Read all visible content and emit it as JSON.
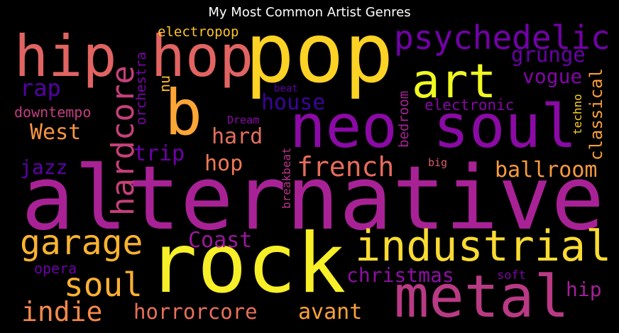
{
  "title": "My Most Common Artist Genres",
  "words": [
    {
      "text": "alternative",
      "color": "#a82296",
      "vertical": false
    },
    {
      "text": "rock",
      "color": "#f7ef28",
      "vertical": false
    },
    {
      "text": "pop",
      "color": "#fcd225",
      "vertical": false
    },
    {
      "text": "neo soul",
      "color": "#8b0aa5",
      "vertical": false
    },
    {
      "text": "metal",
      "color": "#b93a84",
      "vertical": false
    },
    {
      "text": "hip hop",
      "color": "#e16462",
      "vertical": false
    },
    {
      "text": "b",
      "color": "#fca636",
      "vertical": false
    },
    {
      "text": "art",
      "color": "#f0f921",
      "vertical": false
    },
    {
      "text": "industrial",
      "color": "#fadb32",
      "vertical": false
    },
    {
      "text": "psychedelic",
      "color": "#7301a8",
      "vertical": false
    },
    {
      "text": "garage",
      "color": "#fbb32f",
      "vertical": false
    },
    {
      "text": "hardcore",
      "color": "#c6407a",
      "vertical": true
    },
    {
      "text": "soul",
      "color": "#fdb130",
      "vertical": false
    },
    {
      "text": "french",
      "color": "#e66c5c",
      "vertical": false
    },
    {
      "text": "indie",
      "color": "#f4894a",
      "vertical": false
    },
    {
      "text": "horrorcore",
      "color": "#e8705a",
      "vertical": false
    },
    {
      "text": "avant",
      "color": "#fba238",
      "vertical": false
    },
    {
      "text": "ballroom",
      "color": "#f69b3e",
      "vertical": false
    },
    {
      "text": "christmas",
      "color": "#8f0ea4",
      "vertical": false
    },
    {
      "text": "Coast",
      "color": "#9c179e",
      "vertical": false
    },
    {
      "text": "grunge",
      "color": "#6a00a8",
      "vertical": false
    },
    {
      "text": "vogue",
      "color": "#8305a7",
      "vertical": false
    },
    {
      "text": "house",
      "color": "#3b049a",
      "vertical": false
    },
    {
      "text": "rap",
      "color": "#5302a3",
      "vertical": false
    },
    {
      "text": "West",
      "color": "#f89540",
      "vertical": false
    },
    {
      "text": "jazz",
      "color": "#5c01a6",
      "vertical": false
    },
    {
      "text": "trip",
      "color": "#6f00a8",
      "vertical": false
    },
    {
      "text": "hard",
      "color": "#e46f5e",
      "vertical": false
    },
    {
      "text": "hop",
      "color": "#ed7953",
      "vertical": false
    },
    {
      "text": "downtempo",
      "color": "#c33d80",
      "vertical": false
    },
    {
      "text": "electronic",
      "color": "#8606a6",
      "vertical": false
    },
    {
      "text": "classical",
      "color": "#fb9f3a",
      "vertical": true
    },
    {
      "text": "bedroom",
      "color": "#a62098",
      "vertical": true
    },
    {
      "text": "orchestra",
      "color": "#7e03a8",
      "vertical": true
    },
    {
      "text": "hip",
      "color": "#a51f99",
      "vertical": false
    },
    {
      "text": "opera",
      "color": "#6e00a8",
      "vertical": false
    },
    {
      "text": "electropop",
      "color": "#fdc328",
      "vertical": false
    },
    {
      "text": "nu",
      "color": "#fec029",
      "vertical": true
    },
    {
      "text": "techno",
      "color": "#fcce25",
      "vertical": true
    },
    {
      "text": "breakbeat",
      "color": "#b83289",
      "vertical": true
    },
    {
      "text": "beat",
      "color": "#5b01a5",
      "vertical": false
    },
    {
      "text": "Dream",
      "color": "#8a09a5",
      "vertical": false
    },
    {
      "text": "big",
      "color": "#db5c68",
      "vertical": false
    },
    {
      "text": "soft",
      "color": "#7e03a8",
      "vertical": false
    }
  ]
}
